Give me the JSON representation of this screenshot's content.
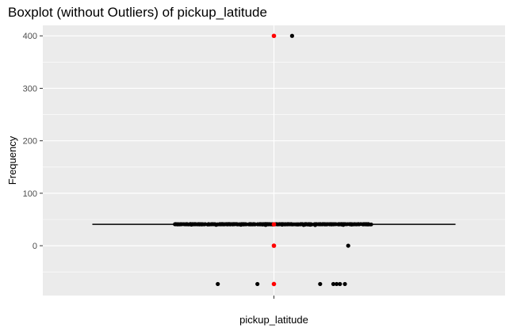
{
  "chart_data": {
    "type": "box",
    "title": "Boxplot (without Outliers) of  pickup_latitude",
    "xlabel": "pickup_latitude",
    "ylabel": "Frequency",
    "x_ticks": [
      "pickup_latitude"
    ],
    "y_ticks": [
      0,
      100,
      200,
      300,
      400
    ],
    "ylim": [
      -95,
      420
    ],
    "grid": true,
    "box": {
      "min": 40.6,
      "q1": 40.73,
      "median": 40.75,
      "q3": 40.77,
      "max": 40.9,
      "whisker_span": [
        -1.1,
        1.1
      ]
    },
    "points_black": [
      {
        "x": 0.11,
        "y": 400
      },
      {
        "x": 0.45,
        "y": 0
      },
      {
        "x": -0.34,
        "y": -73
      },
      {
        "x": -0.1,
        "y": -73
      },
      {
        "x": 0.28,
        "y": -73
      },
      {
        "x": 0.36,
        "y": -73
      },
      {
        "x": 0.38,
        "y": -73
      },
      {
        "x": 0.4,
        "y": -73
      },
      {
        "x": 0.43,
        "y": -73
      },
      {
        "x": -0.5,
        "y": 40.4
      },
      {
        "x": -0.35,
        "y": 39.9
      },
      {
        "x": -0.2,
        "y": 40.2
      },
      {
        "x": -0.05,
        "y": 39.8
      },
      {
        "x": 0.05,
        "y": 40.3
      },
      {
        "x": 0.18,
        "y": 39.7
      },
      {
        "x": 0.22,
        "y": 40.1
      },
      {
        "x": 0.25,
        "y": 39.6
      },
      {
        "x": 0.42,
        "y": 40.0
      },
      {
        "x": 0.47,
        "y": 40.5
      }
    ],
    "points_red": [
      {
        "x": 0.0,
        "y": 400
      },
      {
        "x": 0.0,
        "y": 40.75
      },
      {
        "x": 0.0,
        "y": 0
      },
      {
        "x": 0.0,
        "y": -73
      }
    ],
    "jitter_band": {
      "x_range": [
        -0.6,
        0.6
      ],
      "y_range": [
        40.4,
        41.3
      ]
    },
    "colors": {
      "panel": "#ebebeb",
      "grid": "#ffffff",
      "points": "#000000",
      "red_points": "#ff0000",
      "line": "#000000"
    }
  }
}
